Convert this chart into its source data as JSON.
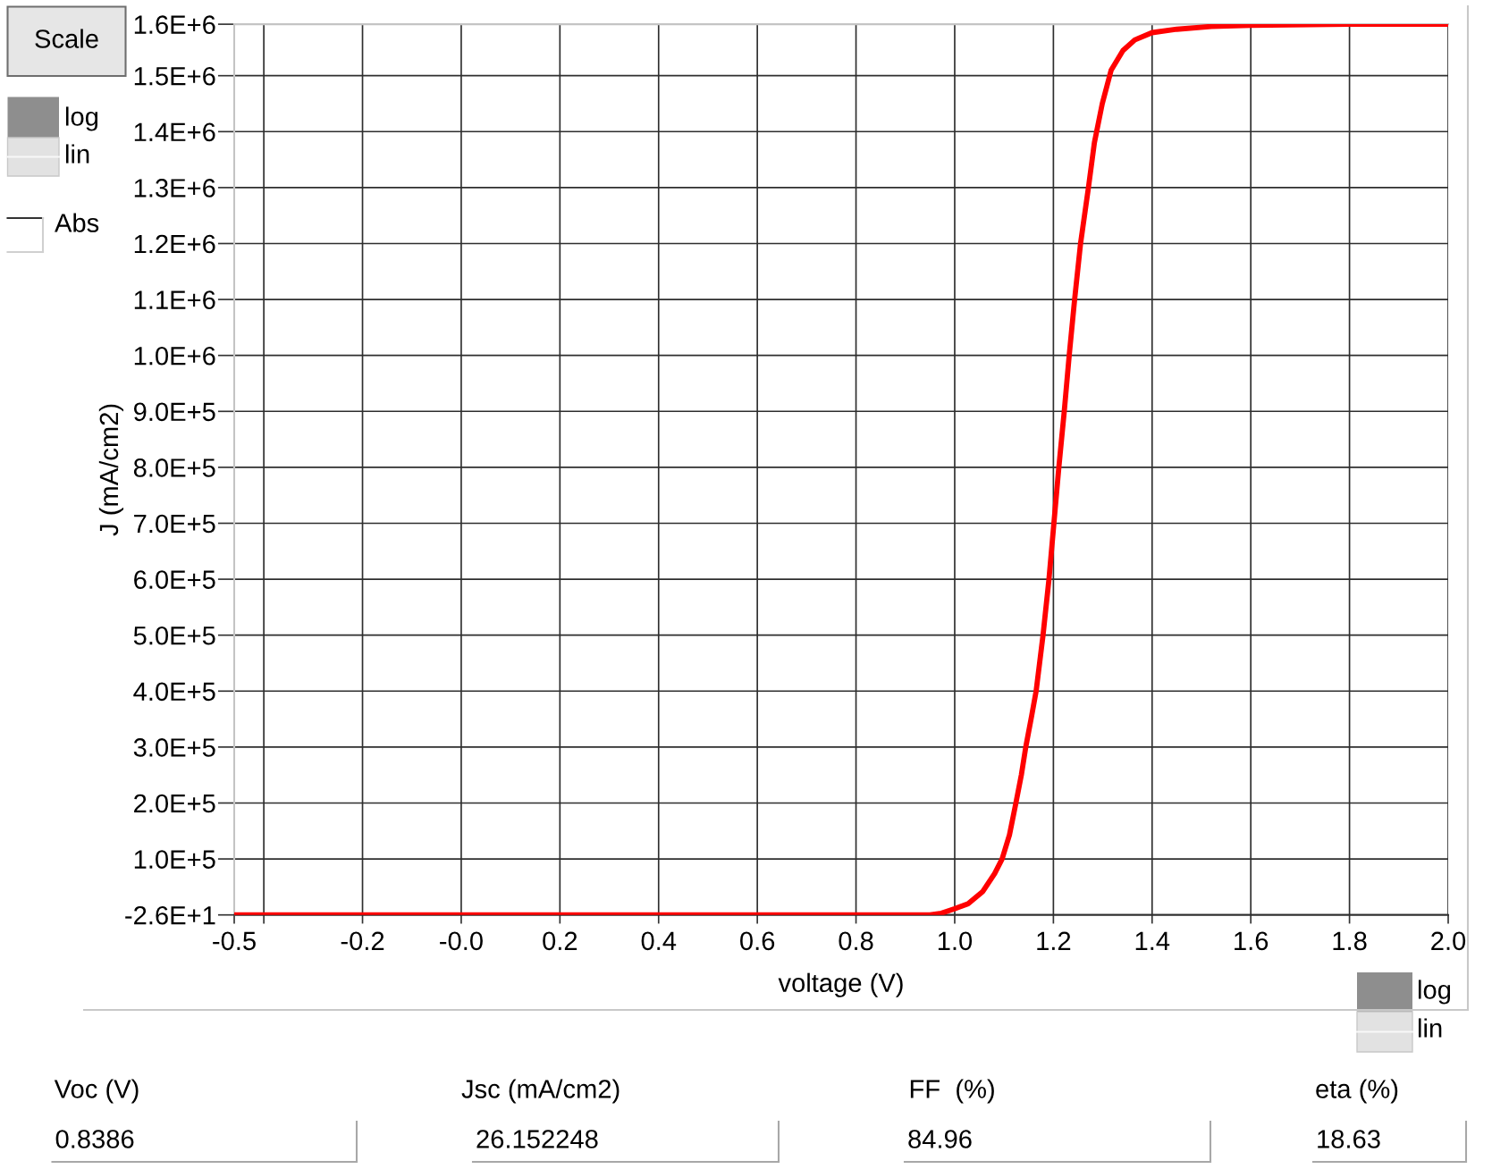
{
  "chart_data": {
    "type": "line",
    "xlabel": "voltage (V)",
    "ylabel": "J (mA/cm2)",
    "x": [
      -0.46,
      0.95,
      0.973,
      1.0,
      1.027,
      1.057,
      1.081,
      1.096,
      1.111,
      1.124,
      1.135,
      1.144,
      1.156,
      1.165,
      1.179,
      1.191,
      1.201,
      1.211,
      1.222,
      1.232,
      1.243,
      1.255,
      1.271,
      1.283,
      1.299,
      1.317,
      1.341,
      1.365,
      1.4,
      1.45,
      1.52,
      1.6,
      1.8,
      2.0
    ],
    "series": [
      {
        "color": "#ff0000",
        "values": [
          -26,
          -26,
          3000,
          11000,
          20000,
          42000,
          74000,
          100000,
          143000,
          200000,
          250000,
          300000,
          356000,
          400000,
          500000,
          600000,
          700000,
          800000,
          900000,
          1000000,
          1100000,
          1200000,
          1300000,
          1380000,
          1450000,
          1510000,
          1545000,
          1564000,
          1577000,
          1583000,
          1588000,
          1590000,
          1592000,
          1592000
        ]
      }
    ],
    "xlim": [
      -0.46,
      2.0
    ],
    "ylim": [
      -26,
      1592000
    ],
    "xticks": [
      {
        "value": -0.46,
        "label": "-0.5"
      },
      {
        "value": -0.4,
        "label": null
      },
      {
        "value": -0.2,
        "label": "-0.2"
      },
      {
        "value": 0,
        "label": "-0.0"
      },
      0.2,
      0.4,
      0.6,
      0.8,
      {
        "value": 1,
        "label": "1.0"
      },
      1.2,
      1.4,
      1.6,
      1.8,
      {
        "value": 2,
        "label": "2.0"
      }
    ],
    "yticks": [
      {
        "value": -26,
        "label": "-2.6E+1"
      },
      {
        "value": 100000,
        "label": "1.0E+5"
      },
      {
        "value": 200000,
        "label": "2.0E+5"
      },
      {
        "value": 300000,
        "label": "3.0E+5"
      },
      {
        "value": 400000,
        "label": "4.0E+5"
      },
      {
        "value": 500000,
        "label": "5.0E+5"
      },
      {
        "value": 600000,
        "label": "6.0E+5"
      },
      {
        "value": 700000,
        "label": "7.0E+5"
      },
      {
        "value": 800000,
        "label": "8.0E+5"
      },
      {
        "value": 900000,
        "label": "9.0E+5"
      },
      {
        "value": 1000000,
        "label": "1.0E+6"
      },
      {
        "value": 1100000,
        "label": "1.1E+6"
      },
      {
        "value": 1200000,
        "label": "1.2E+6"
      },
      {
        "value": 1300000,
        "label": "1.3E+6"
      },
      {
        "value": 1400000,
        "label": "1.4E+6"
      },
      {
        "value": 1500000,
        "label": "1.5E+6"
      },
      {
        "value": 1592000,
        "label": "1.6E+6"
      }
    ],
    "grid": true,
    "annotations": [
      "Scale",
      "log",
      "lin",
      "Abs",
      "log",
      "lin",
      "Voc (V)",
      "0.8386",
      "Jsc (mA/cm2)",
      "26.152248",
      "FF  (%)",
      "84.96",
      "eta (%)",
      "18.63"
    ]
  }
}
